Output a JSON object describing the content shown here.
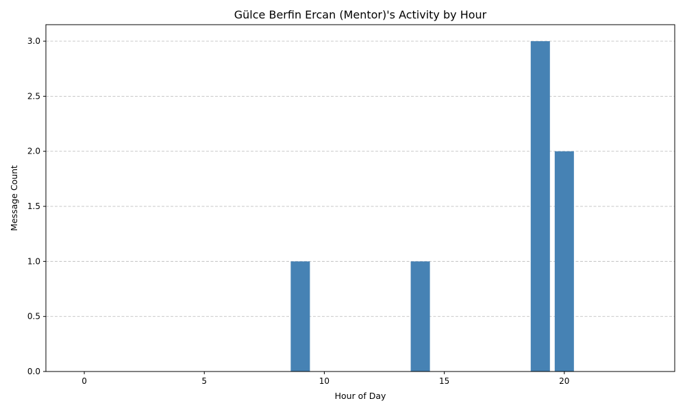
{
  "chart_data": {
    "type": "bar",
    "title": "Gülce Berfin Ercan (Mentor)'s Activity by Hour",
    "xlabel": "Hour of Day",
    "ylabel": "Message Count",
    "x": [
      9,
      14,
      19,
      20
    ],
    "values": [
      1,
      1,
      3,
      2
    ],
    "bar_width": 0.8,
    "xlim": [
      -1.6,
      24.6
    ],
    "ylim": [
      0,
      3.15
    ],
    "xticks": [
      0,
      5,
      10,
      15,
      20
    ],
    "xtick_labels": [
      "0",
      "5",
      "10",
      "15",
      "20"
    ],
    "yticks": [
      0.0,
      0.5,
      1.0,
      1.5,
      2.0,
      2.5,
      3.0
    ],
    "ytick_labels": [
      "0.0",
      "0.5",
      "1.0",
      "1.5",
      "2.0",
      "2.5",
      "3.0"
    ],
    "grid": "y-dashed",
    "bar_color": "#4682b4"
  }
}
